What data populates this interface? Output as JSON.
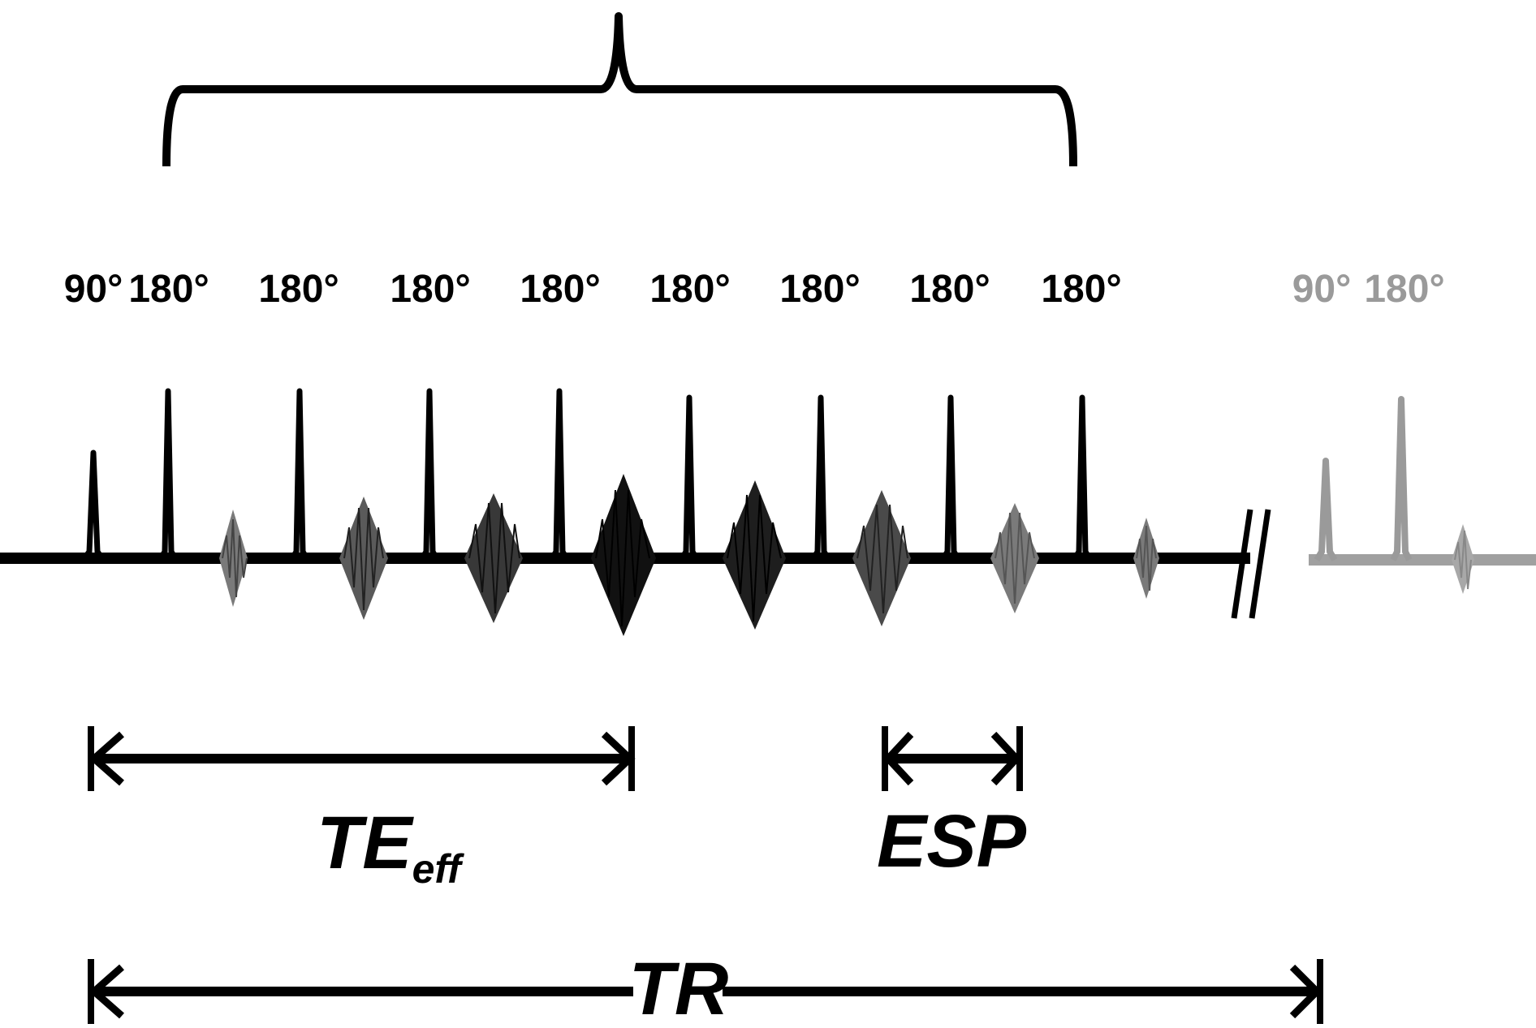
{
  "labels": {
    "pulse_90": "90°",
    "pulse_180": "180°",
    "te_eff_main": "TE",
    "te_eff_sub": "eff",
    "esp": "ESP",
    "tr": "TR"
  },
  "colors": {
    "ink": "#000000",
    "faded": "#9a9a9a"
  },
  "sequence": {
    "refocusing_pulses_in_train": 8,
    "echoes_in_train": 8
  }
}
